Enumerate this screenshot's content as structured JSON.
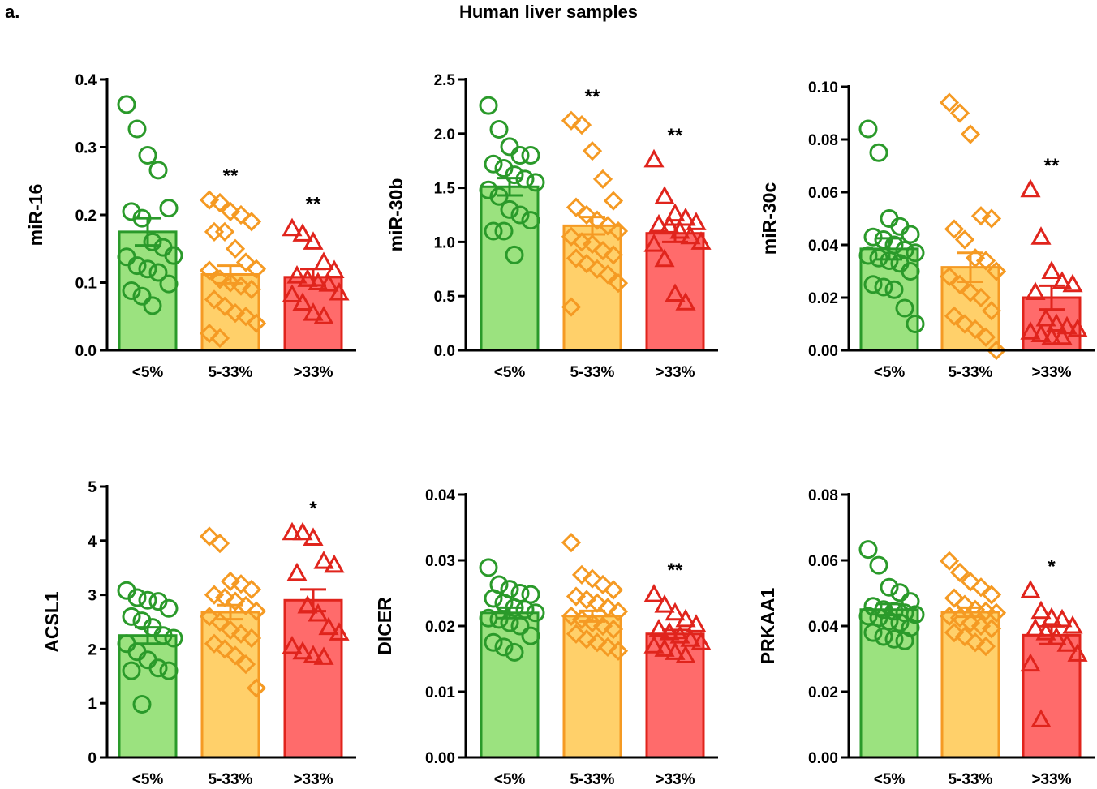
{
  "figure": {
    "panel_label": "a.",
    "title": "Human liver samples"
  },
  "colors": {
    "green_fill": "#9be27f",
    "green_edge": "#2a9a2a",
    "orange_fill": "#ffd06a",
    "orange_edge": "#f59a23",
    "red_fill": "#ff6b6b",
    "red_edge": "#e0241c"
  },
  "chart_data": [
    {
      "type": "bar",
      "ylabel": "miR-16",
      "categories": [
        "<5%",
        "5-33%",
        ">33%"
      ],
      "ylim": [
        0,
        0.4
      ],
      "yticks": [
        "0.0",
        "0.1",
        "0.2",
        "0.3",
        "0.4"
      ],
      "grid": false,
      "series": [
        {
          "values": [
            0.175,
            0.112,
            0.108
          ],
          "sem": [
            0.02,
            0.013,
            0.012
          ],
          "points": [
            [
              0.363,
              0.327,
              0.288,
              0.266,
              0.21,
              0.205,
              0.195,
              0.16,
              0.152,
              0.14,
              0.138,
              0.125,
              0.12,
              0.115,
              0.098,
              0.088,
              0.08,
              0.066
            ],
            [
              0.222,
              0.218,
              0.205,
              0.2,
              0.19,
              0.175,
              0.175,
              0.15,
              0.13,
              0.12,
              0.118,
              0.105,
              0.1,
              0.095,
              0.09,
              0.075,
              0.065,
              0.055,
              0.05,
              0.04,
              0.025,
              0.018
            ],
            [
              0.18,
              0.172,
              0.16,
              0.13,
              0.118,
              0.11,
              0.105,
              0.1,
              0.098,
              0.085,
              0.082,
              0.07,
              0.055,
              0.05
            ]
          ]
        }
      ],
      "annotations": [
        "",
        "**",
        "**"
      ]
    },
    {
      "type": "bar",
      "ylabel": "miR-30b",
      "categories": [
        "<5%",
        "5-33%",
        ">33%"
      ],
      "ylim": [
        0,
        2.5
      ],
      "yticks": [
        "0.0",
        "0.5",
        "1.0",
        "1.5",
        "2.0",
        "2.5"
      ],
      "grid": false,
      "series": [
        {
          "values": [
            1.51,
            1.15,
            1.08
          ],
          "sem": [
            0.08,
            0.08,
            0.08
          ],
          "points": [
            [
              2.26,
              2.04,
              1.88,
              1.8,
              1.8,
              1.72,
              1.68,
              1.62,
              1.58,
              1.55,
              1.48,
              1.42,
              1.3,
              1.25,
              1.2,
              1.1,
              1.1,
              0.88
            ],
            [
              2.12,
              2.08,
              1.84,
              1.58,
              1.38,
              1.32,
              1.25,
              1.2,
              1.15,
              1.1,
              1.05,
              1.0,
              0.98,
              0.92,
              0.88,
              0.85,
              0.8,
              0.75,
              0.7,
              0.62,
              0.4
            ],
            [
              1.76,
              1.42,
              1.26,
              1.22,
              1.18,
              1.16,
              1.15,
              1.1,
              1.05,
              1.0,
              0.98,
              0.84,
              0.52,
              0.44
            ]
          ]
        }
      ],
      "annotations": [
        "",
        "**",
        "**"
      ]
    },
    {
      "type": "bar",
      "ylabel": "miR-30c",
      "categories": [
        "<5%",
        "5-33%",
        ">33%"
      ],
      "ylim": [
        0,
        0.1
      ],
      "yticks": [
        "0.00",
        "0.02",
        "0.04",
        "0.06",
        "0.08",
        "0.10"
      ],
      "grid": false,
      "series": [
        {
          "values": [
            0.0385,
            0.0315,
            0.02
          ],
          "sem": [
            0.004,
            0.0055,
            0.0045
          ],
          "points": [
            [
              0.084,
              0.075,
              0.05,
              0.047,
              0.044,
              0.043,
              0.042,
              0.04,
              0.038,
              0.037,
              0.036,
              0.035,
              0.034,
              0.033,
              0.03,
              0.025,
              0.024,
              0.023,
              0.016,
              0.01
            ],
            [
              0.094,
              0.09,
              0.082,
              0.051,
              0.05,
              0.046,
              0.042,
              0.035,
              0.034,
              0.03,
              0.028,
              0.025,
              0.022,
              0.02,
              0.015,
              0.013,
              0.01,
              0.008,
              0.005,
              0.0
            ],
            [
              0.061,
              0.043,
              0.03,
              0.026,
              0.025,
              0.022,
              0.012,
              0.01,
              0.009,
              0.008,
              0.007,
              0.006,
              0.005,
              0.005
            ]
          ]
        }
      ],
      "annotations": [
        "",
        "",
        "**"
      ]
    },
    {
      "type": "bar",
      "ylabel": "ACSL1",
      "categories": [
        "<5%",
        "5-33%",
        ">33%"
      ],
      "ylim": [
        0,
        5
      ],
      "yticks": [
        "0",
        "1",
        "2",
        "3",
        "4",
        "5"
      ],
      "grid": false,
      "series": [
        {
          "values": [
            2.25,
            2.68,
            2.9
          ],
          "sem": [
            0.15,
            0.13,
            0.2
          ],
          "points": [
            [
              3.08,
              2.95,
              2.9,
              2.88,
              2.75,
              2.6,
              2.52,
              2.4,
              2.25,
              2.2,
              2.1,
              1.95,
              1.8,
              1.65,
              1.6,
              1.6,
              0.98
            ],
            [
              4.08,
              3.95,
              3.25,
              3.2,
              3.1,
              3.0,
              2.95,
              2.88,
              2.8,
              2.7,
              2.6,
              2.5,
              2.35,
              2.28,
              2.2,
              2.1,
              2.0,
              1.88,
              1.72,
              1.28
            ],
            [
              4.15,
              4.15,
              4.05,
              3.62,
              3.55,
              3.4,
              2.8,
              2.65,
              2.4,
              2.3,
              2.05,
              1.95,
              1.88,
              1.85
            ]
          ]
        }
      ],
      "annotations": [
        "",
        "",
        "*"
      ]
    },
    {
      "type": "bar",
      "ylabel": "DICER",
      "categories": [
        "<5%",
        "5-33%",
        ">33%"
      ],
      "ylim": [
        0,
        0.04
      ],
      "yticks": [
        "0.00",
        "0.01",
        "0.02",
        "0.03",
        "0.04"
      ],
      "grid": false,
      "series": [
        {
          "values": [
            0.022,
            0.0215,
            0.0188
          ],
          "sem": [
            0.0008,
            0.0008,
            0.0006
          ],
          "points": [
            [
              0.0289,
              0.0263,
              0.0256,
              0.025,
              0.0248,
              0.0242,
              0.0235,
              0.0228,
              0.0225,
              0.022,
              0.0212,
              0.021,
              0.0205,
              0.02,
              0.0185,
              0.0175,
              0.0168,
              0.016
            ],
            [
              0.0327,
              0.0278,
              0.0272,
              0.0263,
              0.0255,
              0.0245,
              0.024,
              0.0235,
              0.0228,
              0.0222,
              0.0215,
              0.021,
              0.0205,
              0.02,
              0.0195,
              0.0188,
              0.018,
              0.0175,
              0.0168,
              0.0162
            ],
            [
              0.0248,
              0.0232,
              0.022,
              0.021,
              0.0202,
              0.0195,
              0.019,
              0.0185,
              0.018,
              0.0175,
              0.017,
              0.0165,
              0.016,
              0.0155
            ]
          ]
        }
      ],
      "annotations": [
        "",
        "",
        "**"
      ]
    },
    {
      "type": "bar",
      "ylabel": "PRKAA1",
      "categories": [
        "<5%",
        "5-33%",
        ">33%"
      ],
      "ylim": [
        0,
        0.08
      ],
      "yticks": [
        "0.00",
        "0.02",
        "0.04",
        "0.06",
        "0.08"
      ],
      "grid": false,
      "series": [
        {
          "values": [
            0.045,
            0.0442,
            0.0372
          ],
          "sem": [
            0.0017,
            0.0014,
            0.0027
          ],
          "points": [
            [
              0.0633,
              0.0585,
              0.0518,
              0.0502,
              0.0475,
              0.046,
              0.045,
              0.0445,
              0.044,
              0.0435,
              0.043,
              0.0425,
              0.0415,
              0.041,
              0.0395,
              0.038,
              0.0368,
              0.036,
              0.0355
            ],
            [
              0.0598,
              0.0563,
              0.0535,
              0.0518,
              0.0495,
              0.0485,
              0.0465,
              0.045,
              0.0445,
              0.044,
              0.043,
              0.0425,
              0.041,
              0.04,
              0.0392,
              0.038,
              0.0368,
              0.035,
              0.0338
            ],
            [
              0.0508,
              0.0445,
              0.0425,
              0.042,
              0.04,
              0.0392,
              0.038,
              0.0365,
              0.0345,
              0.0315,
              0.0285,
              0.0115
            ]
          ]
        }
      ],
      "annotations": [
        "",
        "",
        "*"
      ]
    }
  ]
}
